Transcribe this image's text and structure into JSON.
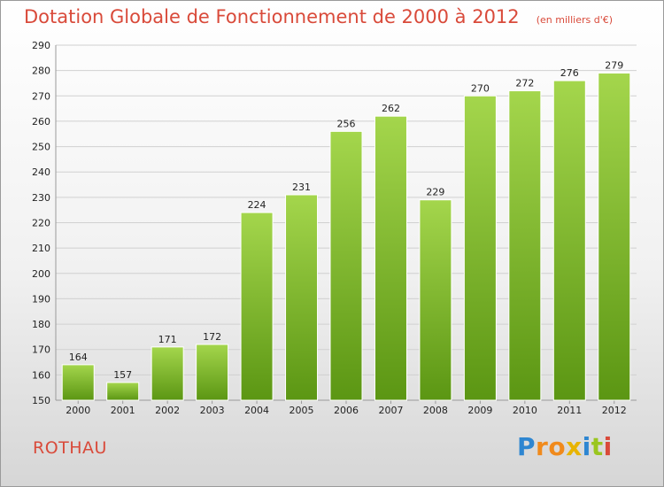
{
  "header": {
    "title": "Dotation Globale de Fonctionnement de 2000 à 2012",
    "subtitle": "(en milliers d'€)"
  },
  "commune": "ROTHAU",
  "logo": {
    "letters": [
      "P",
      "r",
      "o",
      "x",
      "i",
      "t",
      "i"
    ],
    "colors": [
      "#2e86d1",
      "#f08a1c",
      "#f08a1c",
      "#e8b400",
      "#2e86d1",
      "#9ac61f",
      "#d94a3a"
    ]
  },
  "colors": {
    "bar_top": "#a4d64c",
    "bar_bottom": "#5b9613",
    "title": "#d94a3a"
  },
  "chart_data": {
    "type": "bar",
    "categories": [
      "2000",
      "2001",
      "2002",
      "2003",
      "2004",
      "2005",
      "2006",
      "2007",
      "2008",
      "2009",
      "2010",
      "2011",
      "2012"
    ],
    "values": [
      164,
      157,
      171,
      172,
      224,
      231,
      256,
      262,
      229,
      270,
      272,
      276,
      279
    ],
    "ylim": [
      150,
      290
    ],
    "yticks": [
      150,
      160,
      170,
      180,
      190,
      200,
      210,
      220,
      230,
      240,
      250,
      260,
      270,
      280,
      290
    ],
    "grid": true,
    "data_labels": true
  }
}
